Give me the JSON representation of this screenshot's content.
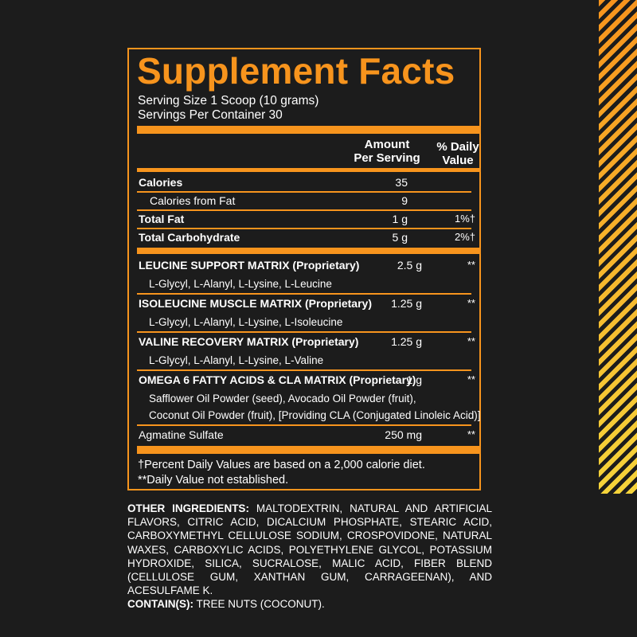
{
  "colors": {
    "accent": "#f7941d",
    "stripe": "#f7941d",
    "background": "#1c1c1c"
  },
  "title": "Supplement Facts",
  "serving_size": "Serving Size 1 Scoop (10 grams)",
  "servings_per_container": "Servings Per Container 30",
  "header": {
    "amount_line1": "Amount",
    "amount_line2": "Per Serving",
    "dv_line1": "% Daily",
    "dv_line2": "Value"
  },
  "nutrients": [
    {
      "name": "Calories",
      "amount": "35",
      "dv": ""
    },
    {
      "name": "Calories from Fat",
      "amount": "9",
      "dv": ""
    },
    {
      "name": "Total Fat",
      "amount": "1 g",
      "dv": "1%†"
    },
    {
      "name": "Total Carbohydrate",
      "amount": "5 g",
      "dv": "2%†"
    }
  ],
  "blends": [
    {
      "name": "LEUCINE SUPPORT MATRIX (Proprietary)",
      "amount": "2.5 g",
      "dv": "**",
      "ingredients": "L-Glycyl, L-Alanyl, L-Lysine, L-Leucine"
    },
    {
      "name": "ISOLEUCINE MUSCLE MATRIX (Proprietary)",
      "amount": "1.25 g",
      "dv": "**",
      "ingredients": "L-Glycyl, L-Alanyl, L-Lysine, L-Isoleucine"
    },
    {
      "name": "VALINE RECOVERY MATRIX (Proprietary)",
      "amount": "1.25 g",
      "dv": "**",
      "ingredients": "L-Glycyl, L-Alanyl, L-Lysine, L-Valine"
    },
    {
      "name": "OMEGA 6 FATTY ACIDS  & CLA MATRIX (Proprietary)",
      "amount": "1 g",
      "dv": "**",
      "ingredients_line1": "Safflower Oil Powder (seed), Avocado Oil Powder (fruit),",
      "ingredients_line2": "Coconut Oil Powder (fruit), [Providing CLA (Conjugated Linoleic Acid)]"
    },
    {
      "name": "Agmatine Sulfate",
      "amount": "250 mg",
      "dv": "**"
    }
  ],
  "footnotes": {
    "line1": "†Percent Daily Values are based on a 2,000 calorie diet.",
    "line2": "**Daily Value not established."
  },
  "other_ingredients": {
    "label": "OTHER INGREDIENTS:",
    "text": "MALTODEXTRIN, NATURAL AND ARTIFICIAL FLAVORS, CITRIC ACID, DICALCIUM PHOSPHATE, STEARIC ACID, CARBOXYMETHYL CELLULOSE SODIUM, CROSPOVIDONE, NATURAL WAXES, CARBOXYLIC ACIDS, POLYETHYLENE GLYCOL, POTASSIUM HYDROXIDE, SILICA, SUCRALOSE, MALIC ACID, FIBER BLEND (CELLULOSE GUM, XANTHAN GUM, CARRAGEENAN), AND ACESULFAME K.",
    "contains_label": "CONTAIN(S):",
    "contains_text": "TREE NUTS (COCONUT)."
  }
}
